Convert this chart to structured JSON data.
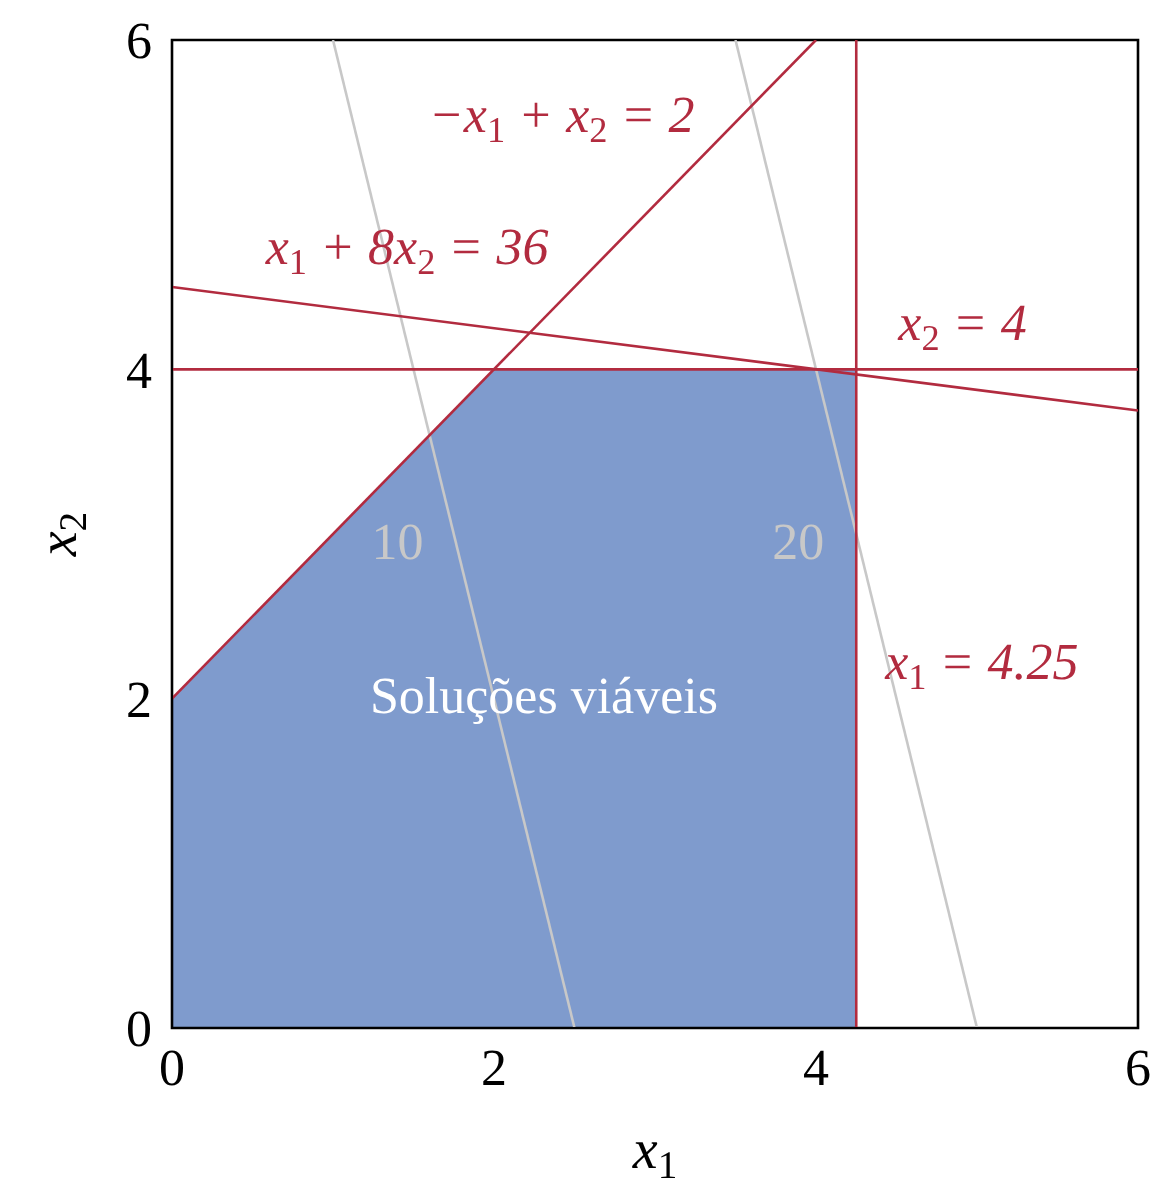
{
  "chart_data": {
    "type": "line",
    "xlabel": "x$_{1}$",
    "ylabel": "x$_{2}$",
    "xlim": [
      0,
      6
    ],
    "ylim": [
      0,
      6
    ],
    "xticks": [
      0,
      2,
      4,
      6
    ],
    "yticks": [
      0,
      2,
      4,
      6
    ],
    "legend": false,
    "marker": "none",
    "series": [
      {
        "type": "area",
        "color": "#7f9bcd",
        "x": [
          0,
          2,
          4.25
        ],
        "values": [
          2,
          4,
          4
        ]
      },
      {
        "color": "#c8c8c8",
        "x": [
          1,
          2.5
        ],
        "values": [
          6,
          0
        ]
      },
      {
        "color": "#c8c8c8",
        "x": [
          3.5,
          5
        ],
        "values": [
          6,
          0
        ]
      },
      {
        "color": "#b22b3f",
        "x": [
          0,
          4
        ],
        "values": [
          2,
          6
        ]
      },
      {
        "color": "#b22b3f",
        "x": [
          0,
          6
        ],
        "values": [
          4.5,
          3.75
        ]
      },
      {
        "color": "#b22b3f",
        "x": [
          0,
          6
        ],
        "values": [
          4,
          4
        ]
      },
      {
        "color": "#b22b3f",
        "x": [
          4.25,
          4.25
        ],
        "values": [
          0,
          6
        ]
      }
    ],
    "annotations": [
      "Soluções viáveis",
      "10",
      "20",
      "−x$_{1}$ + x$_{2}$ = 2",
      "x$_{1}$ + 8x$_{2}$ = 36",
      "x$_{2}$ = 4",
      "x$_{1}$ = 4.25"
    ]
  }
}
